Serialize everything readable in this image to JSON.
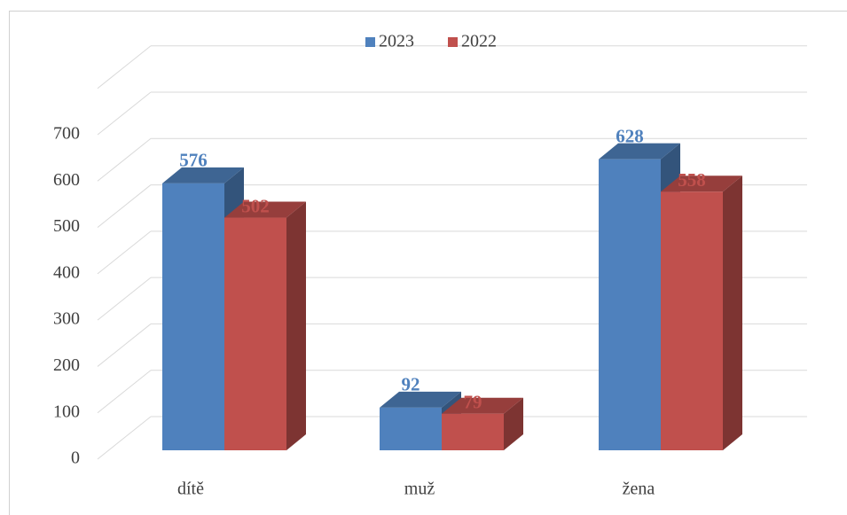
{
  "chart_data": {
    "type": "bar3d",
    "categories": [
      "dítě",
      "muž",
      "žena"
    ],
    "series": [
      {
        "name": "2023",
        "color": "#4f81bd",
        "values": [
          576,
          92,
          628
        ]
      },
      {
        "name": "2022",
        "color": "#c0504d",
        "values": [
          502,
          79,
          558
        ]
      }
    ],
    "ylim": [
      0,
      700
    ],
    "yticks": [
      0,
      100,
      200,
      300,
      400,
      500,
      600,
      700
    ],
    "grid": true,
    "legend": "top"
  }
}
